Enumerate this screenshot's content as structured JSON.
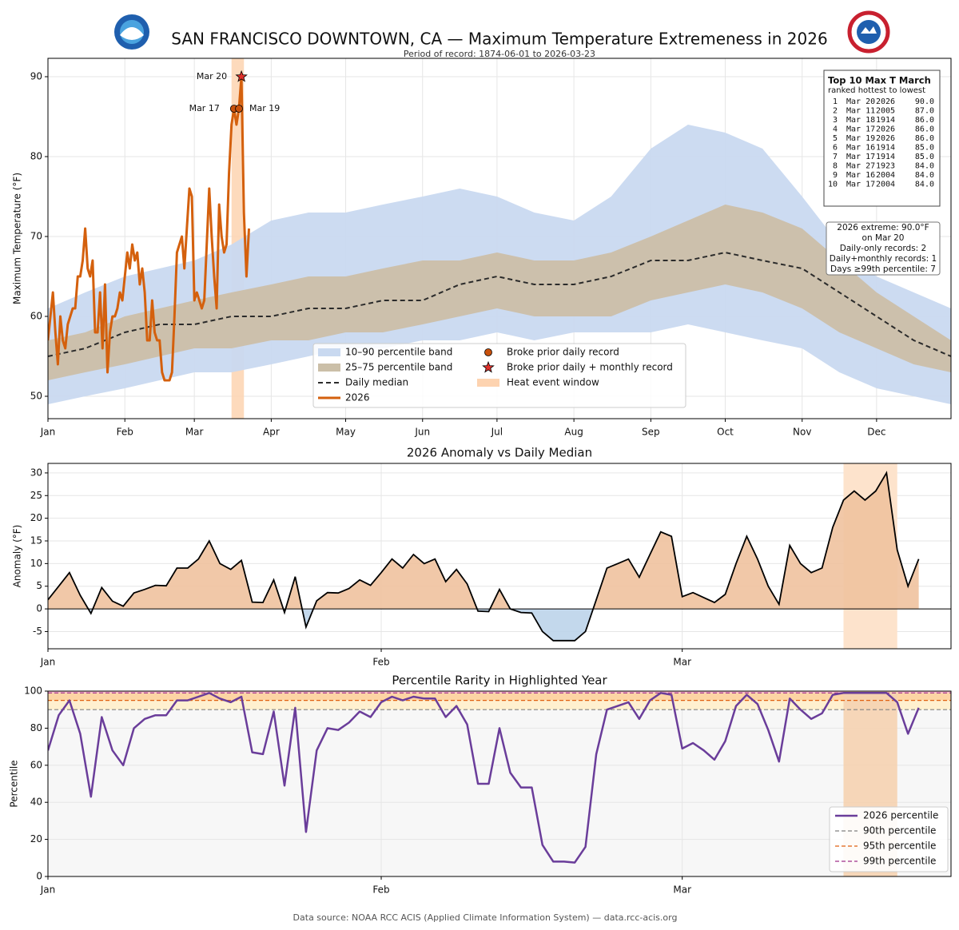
{
  "chart_data": [
    {
      "type": "band_line",
      "title": "SAN FRANCISCO DOWNTOWN, CA — Maximum Temperature Extremeness in 2026",
      "subtitle": "Period of record: 1874-06-01 to 2026-03-23",
      "ylabel": "Maximum Temperature (°F)",
      "xlim": [
        0,
        364
      ],
      "ylim": [
        47.2,
        92.3
      ],
      "grid": true,
      "xticks": [
        {
          "value": 0,
          "label": "Jan"
        },
        {
          "value": 31,
          "label": "Feb"
        },
        {
          "value": 59,
          "label": "Mar"
        },
        {
          "value": 90,
          "label": "Apr"
        },
        {
          "value": 120,
          "label": "May"
        },
        {
          "value": 151,
          "label": "Jun"
        },
        {
          "value": 181,
          "label": "Jul"
        },
        {
          "value": 212,
          "label": "Aug"
        },
        {
          "value": 243,
          "label": "Sep"
        },
        {
          "value": 273,
          "label": "Oct"
        },
        {
          "value": 304,
          "label": "Nov"
        },
        {
          "value": 334,
          "label": "Dec"
        }
      ],
      "yticks": [
        50,
        60,
        70,
        80,
        90
      ],
      "clim_x": [
        0,
        15,
        31,
        45,
        59,
        74,
        90,
        105,
        120,
        135,
        151,
        166,
        181,
        196,
        212,
        227,
        243,
        258,
        273,
        288,
        304,
        319,
        334,
        349,
        364
      ],
      "bands": [
        {
          "name": "10–90 percentile band",
          "color": "#c9d9f0",
          "lower": [
            49,
            50,
            51,
            52,
            53,
            53,
            54,
            55,
            56,
            56,
            57,
            57,
            58,
            57,
            58,
            58,
            58,
            59,
            58,
            57,
            56,
            53,
            51,
            50,
            49
          ],
          "upper": [
            61,
            63,
            65,
            66,
            67,
            69,
            72,
            73,
            73,
            74,
            75,
            76,
            75,
            73,
            72,
            75,
            81,
            84,
            83,
            81,
            75,
            69,
            65,
            63,
            61
          ]
        },
        {
          "name": "25–75 percentile band",
          "color": "#cbbfa8",
          "lower": [
            52,
            53,
            54,
            55,
            56,
            56,
            57,
            57,
            58,
            58,
            59,
            60,
            61,
            60,
            60,
            60,
            62,
            63,
            64,
            63,
            61,
            58,
            56,
            54,
            53
          ],
          "upper": [
            57,
            58,
            60,
            61,
            62,
            63,
            64,
            65,
            65,
            66,
            67,
            67,
            68,
            67,
            67,
            68,
            70,
            72,
            74,
            73,
            71,
            67,
            63,
            60,
            57
          ]
        }
      ],
      "median": {
        "name": "Daily median",
        "color": "#2b2b2b",
        "values": [
          55,
          56,
          58,
          59,
          59,
          60,
          60,
          61,
          61,
          62,
          62,
          64,
          65,
          64,
          64,
          65,
          67,
          67,
          68,
          67,
          66,
          63,
          60,
          57,
          55
        ]
      },
      "x": [
        0,
        1,
        2,
        3,
        4,
        5,
        6,
        7,
        8,
        9,
        10,
        11,
        12,
        13,
        14,
        15,
        16,
        17,
        18,
        19,
        20,
        21,
        22,
        23,
        24,
        25,
        26,
        27,
        28,
        29,
        30,
        31,
        32,
        33,
        34,
        35,
        36,
        37,
        38,
        39,
        40,
        41,
        42,
        43,
        44,
        45,
        46,
        47,
        48,
        49,
        50,
        51,
        52,
        53,
        54,
        55,
        56,
        57,
        58,
        59,
        60,
        61,
        62,
        63,
        64,
        65,
        66,
        67,
        68,
        69,
        70,
        71,
        72,
        73,
        74,
        75,
        76,
        77,
        78,
        79,
        80,
        81
      ],
      "series": [
        {
          "name": "2026",
          "color": "#d4600d",
          "values": [
            57,
            60,
            63,
            58,
            54,
            60,
            57,
            56,
            59,
            60,
            61,
            61,
            65,
            65,
            67,
            71,
            66,
            65,
            67,
            58,
            58,
            63,
            56,
            64,
            53,
            58,
            60,
            60,
            61,
            63,
            62,
            65,
            68,
            66,
            69,
            67,
            68,
            64,
            66,
            63,
            57,
            57,
            62,
            58,
            57,
            57,
            53,
            52,
            52,
            52,
            53,
            60,
            68,
            69,
            70,
            66,
            71,
            76,
            75,
            62,
            63,
            62,
            61,
            62,
            69,
            76,
            70,
            65,
            61,
            74,
            70,
            68,
            69,
            78,
            84,
            86,
            84,
            86,
            90,
            73,
            65,
            71
          ]
        }
      ],
      "records": [
        {
          "name": "Broke prior daily record",
          "color": "#c8510c",
          "points": [
            {
              "label": "Mar 17",
              "x": 75,
              "value": 86
            },
            {
              "label": "Mar 19",
              "x": 77,
              "value": 86
            }
          ]
        },
        {
          "name": "Broke prior daily + monthly record",
          "color": "#e0302a",
          "points": [
            {
              "label": "Mar 20",
              "x": 78,
              "value": 90
            }
          ]
        }
      ],
      "event_window": {
        "name": "Heat event window",
        "color": "#fdd3b0",
        "range": [
          74,
          79
        ]
      },
      "top10": {
        "title": "Top 10 Max T March",
        "subtitle": "ranked hottest to lowest",
        "rows": [
          [
            "1",
            "Mar 20",
            "2026",
            "90.0"
          ],
          [
            "2",
            "Mar 11",
            "2005",
            "87.0"
          ],
          [
            "3",
            "Mar 18",
            "1914",
            "86.0"
          ],
          [
            "4",
            "Mar 17",
            "2026",
            "86.0"
          ],
          [
            "5",
            "Mar 19",
            "2026",
            "86.0"
          ],
          [
            "6",
            "Mar 16",
            "1914",
            "85.0"
          ],
          [
            "7",
            "Mar 17",
            "1914",
            "85.0"
          ],
          [
            "8",
            "Mar 27",
            "1923",
            "84.0"
          ],
          [
            "9",
            "Mar 16",
            "2004",
            "84.0"
          ],
          [
            "10",
            "Mar 17",
            "2004",
            "84.0"
          ]
        ]
      },
      "info_box": [
        "2026 extreme: 90.0°F",
        "on Mar 20",
        "Daily-only records: 2",
        "Daily+monthly records: 1",
        "Days ≥99th percentile: 7"
      ]
    },
    {
      "type": "area",
      "title": "2026 Anomaly vs Daily Median",
      "ylabel": "Anomaly (°F)",
      "xlim": [
        0,
        84
      ],
      "ylim": [
        -8.8,
        32.1
      ],
      "grid": true,
      "xticks": [
        {
          "value": 0,
          "label": "Jan"
        },
        {
          "value": 31,
          "label": "Feb"
        },
        {
          "value": 59,
          "label": "Mar"
        }
      ],
      "yticks": [
        -5,
        0,
        5,
        10,
        15,
        20,
        25,
        30
      ],
      "positive_color": "#f0c29e",
      "negative_color": "#bcd4ea",
      "line_color": "#000000",
      "event_window": {
        "color": "#fde3cc",
        "range": [
          74,
          79
        ]
      },
      "x": [
        0,
        1,
        2,
        3,
        4,
        5,
        6,
        7,
        8,
        9,
        10,
        11,
        12,
        13,
        14,
        15,
        16,
        17,
        18,
        19,
        20,
        21,
        22,
        23,
        24,
        25,
        26,
        27,
        28,
        29,
        30,
        31,
        32,
        33,
        34,
        35,
        36,
        37,
        38,
        39,
        40,
        41,
        42,
        43,
        44,
        45,
        46,
        47,
        48,
        49,
        50,
        51,
        52,
        53,
        54,
        55,
        56,
        57,
        58,
        59,
        60,
        61,
        62,
        63,
        64,
        65,
        66,
        67,
        68,
        69,
        70,
        71,
        72,
        73,
        74,
        75,
        76,
        77,
        78,
        79,
        80,
        81
      ],
      "values": [
        2,
        5,
        8,
        3,
        -1,
        4.7,
        1.7,
        0.6,
        3.5,
        4.3,
        5.2,
        5.1,
        9,
        9,
        11,
        15,
        10,
        8.7,
        10.7,
        1.5,
        1.4,
        6.4,
        -0.8,
        7.1,
        -4,
        1.8,
        3.6,
        3.5,
        4.5,
        6.4,
        5.2,
        8,
        11,
        9,
        12,
        10,
        11,
        6,
        8.7,
        5.5,
        -0.5,
        -0.6,
        4.3,
        0,
        -0.8,
        -0.9,
        -5,
        -7,
        -7,
        -7,
        -5,
        2,
        9,
        10,
        11,
        7,
        12,
        17,
        16,
        2.7,
        3.6,
        2.5,
        1.4,
        3.2,
        10,
        16,
        11,
        5,
        1,
        14,
        10,
        8,
        9,
        18,
        24,
        26,
        24,
        26,
        30,
        13,
        5,
        11
      ]
    },
    {
      "type": "line",
      "title": "Percentile Rarity in Highlighted Year",
      "ylabel": "Percentile",
      "xlim": [
        0,
        84
      ],
      "ylim": [
        0,
        100
      ],
      "grid": true,
      "xticks": [
        {
          "value": 0,
          "label": "Jan"
        },
        {
          "value": 31,
          "label": "Feb"
        },
        {
          "value": 59,
          "label": "Mar"
        }
      ],
      "yticks": [
        0,
        20,
        40,
        60,
        80,
        100
      ],
      "event_window": {
        "color": "#f5d2b0",
        "range": [
          74,
          79
        ]
      },
      "x": [
        0,
        1,
        2,
        3,
        4,
        5,
        6,
        7,
        8,
        9,
        10,
        11,
        12,
        13,
        14,
        15,
        16,
        17,
        18,
        19,
        20,
        21,
        22,
        23,
        24,
        25,
        26,
        27,
        28,
        29,
        30,
        31,
        32,
        33,
        34,
        35,
        36,
        37,
        38,
        39,
        40,
        41,
        42,
        43,
        44,
        45,
        46,
        47,
        48,
        49,
        50,
        51,
        52,
        53,
        54,
        55,
        56,
        57,
        58,
        59,
        60,
        61,
        62,
        63,
        64,
        65,
        66,
        67,
        68,
        69,
        70,
        71,
        72,
        73,
        74,
        75,
        76,
        77,
        78,
        79,
        80,
        81
      ],
      "series": [
        {
          "name": "2026 percentile",
          "color": "#6a3d9a",
          "values": [
            68,
            87,
            95,
            77,
            43,
            86,
            68,
            60,
            80,
            85,
            87,
            87,
            95,
            95,
            97,
            99,
            96,
            94,
            97,
            67,
            66,
            89,
            49,
            91,
            24,
            68,
            80,
            79,
            83,
            89,
            86,
            94,
            97,
            95,
            97,
            96,
            96,
            86,
            92,
            82,
            50,
            50,
            80,
            56,
            48,
            48,
            17,
            8,
            8,
            7.5,
            16,
            66,
            90,
            92,
            94,
            85,
            95,
            99,
            98,
            69,
            72,
            68,
            63,
            73,
            92,
            98,
            93,
            79,
            62,
            96,
            90,
            85,
            88,
            98,
            99,
            99,
            99,
            99,
            99,
            94,
            77,
            91
          ]
        }
      ],
      "reference_lines": [
        {
          "name": "90th percentile",
          "value": 90,
          "color": "#808080",
          "band_color": "#fff0cf"
        },
        {
          "name": "95th percentile",
          "value": 95,
          "color": "#e06010",
          "band_color": "#fdd4a4"
        },
        {
          "name": "99th percentile",
          "value": 99,
          "color": "#a0308a",
          "band_color": "#f6b9c9"
        }
      ]
    }
  ],
  "footer": {
    "source": "Data source: NOAA RCC ACIS (Applied Climate Information System) — data.rcc-acis.org"
  }
}
